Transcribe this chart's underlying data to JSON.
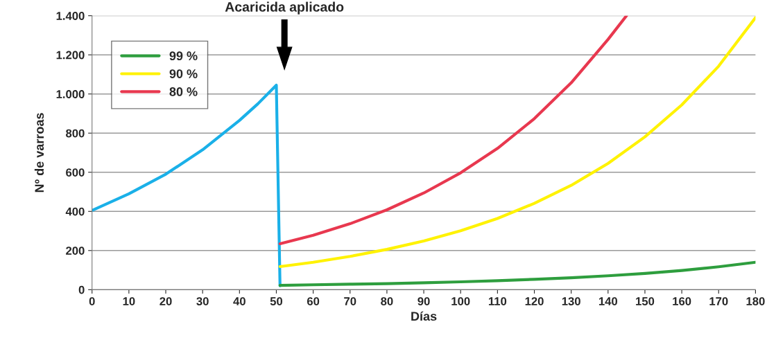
{
  "chart_data": {
    "type": "line",
    "xlabel": "Días",
    "ylabel": "Nº de varroas",
    "xlim": [
      0,
      180
    ],
    "xticks": [
      0,
      10,
      20,
      30,
      40,
      50,
      60,
      70,
      80,
      90,
      100,
      110,
      120,
      130,
      140,
      150,
      160,
      170,
      180
    ],
    "ylim": [
      0,
      1400
    ],
    "yticks": [
      0,
      200,
      400,
      600,
      800,
      {
        "value": 1000,
        "label": "1.000"
      },
      {
        "value": 1200,
        "label": "1.200"
      },
      {
        "value": 1400,
        "label": "1.400"
      }
    ],
    "grid": "y",
    "legend": "top left",
    "marker": "none",
    "line_style": "solid",
    "annotations": [
      "Acaricida aplicado"
    ],
    "series": [
      {
        "color": "#1ab0e8",
        "x": [
          0,
          10,
          20,
          30,
          40,
          45,
          50,
          51
        ],
        "values": [
          405,
          490,
          590,
          715,
          865,
          950,
          1045,
          20
        ]
      },
      {
        "name": "99 %",
        "color": "#2e9e3e",
        "x": [
          51,
          60,
          70,
          80,
          90,
          100,
          110,
          120,
          130,
          140,
          150,
          160,
          170,
          180
        ],
        "values": [
          22,
          25,
          28,
          31,
          35,
          40,
          46,
          53,
          61,
          71,
          83,
          98,
          117,
          140
        ]
      },
      {
        "name": "90 %",
        "color": "#fff200",
        "x": [
          51,
          60,
          70,
          80,
          90,
          100,
          110,
          120,
          130,
          140,
          150,
          160,
          170,
          180
        ],
        "values": [
          118,
          140,
          170,
          206,
          249,
          301,
          364,
          441,
          533,
          645,
          781,
          944,
          1142,
          1390
        ]
      },
      {
        "name": "80 %",
        "color": "#e8384f",
        "x": [
          51,
          60,
          70,
          80,
          90,
          100,
          110,
          120,
          130,
          140,
          145
        ],
        "values": [
          235,
          278,
          337,
          408,
          494,
          597,
          722,
          874,
          1057,
          1279,
          1400
        ]
      }
    ]
  }
}
